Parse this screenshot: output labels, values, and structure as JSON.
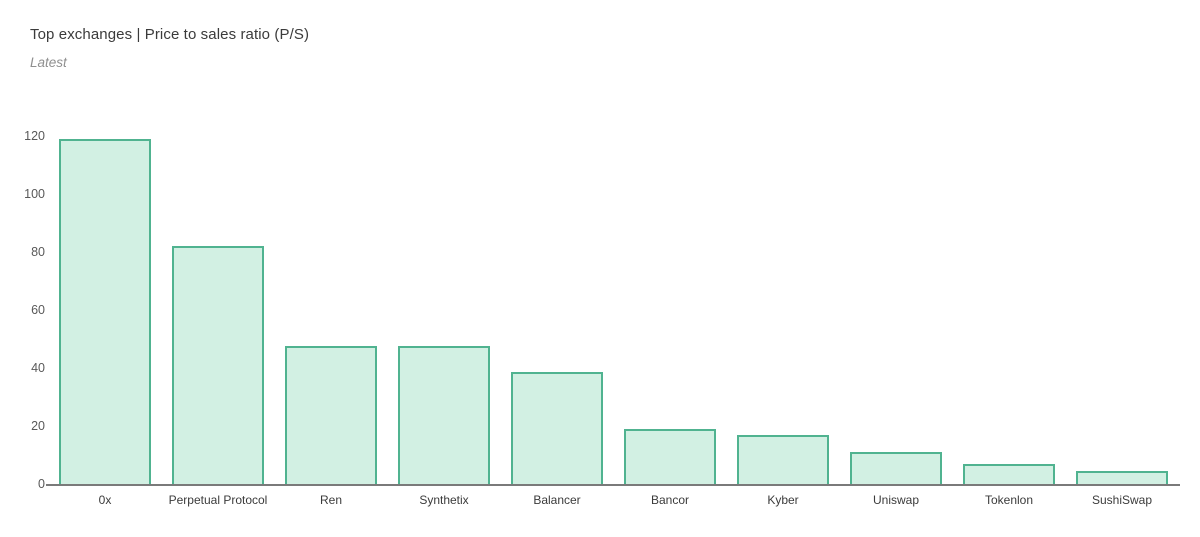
{
  "header": {
    "title": "Top exchanges | Price to sales ratio (P/S)",
    "subtitle": "Latest"
  },
  "chart_data": {
    "type": "bar",
    "title": "Top exchanges | Price to sales ratio (P/S)",
    "subtitle": "Latest",
    "categories": [
      "0x",
      "Perpetual Protocol",
      "Ren",
      "Synthetix",
      "Balancer",
      "Bancor",
      "Kyber",
      "Uniswap",
      "Tokenlon",
      "SushiSwap"
    ],
    "values": [
      119,
      82,
      47.5,
      47.5,
      38.5,
      19,
      17,
      11,
      7,
      4.5
    ],
    "xlabel": "",
    "ylabel": "",
    "ylim": [
      0,
      120
    ],
    "yticks": [
      0,
      20,
      40,
      60,
      80,
      100,
      120
    ],
    "grid": false,
    "legend": false,
    "colors": {
      "background": "#ffffff",
      "bar_fill": "#d2f0e3",
      "bar_border": "#50b390",
      "axis_line": "#7a7a7a",
      "title_text": "#3b3b3b",
      "subtitle_text": "#8f8f8f",
      "tick_text": "#595959",
      "category_text": "#3b3b3b"
    }
  }
}
